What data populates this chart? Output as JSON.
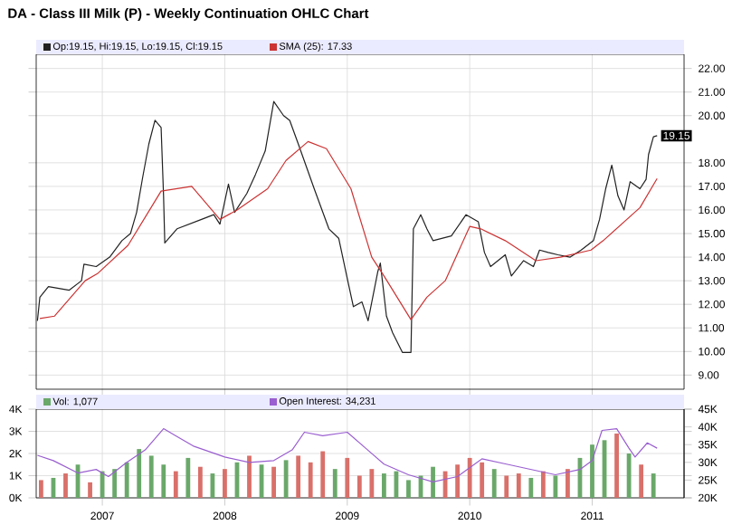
{
  "chart_data": [
    {
      "type": "line",
      "title": "DA - Class III Milk (P) - Weekly Continuation OHLC Chart",
      "legend": "top left",
      "grid": true,
      "tick_labels": "y",
      "xlim": [
        2006.46,
        2011.75
      ],
      "xticks": [
        2007,
        2008,
        2009,
        2010,
        2011
      ],
      "ylim": [
        8.4,
        22.6
      ],
      "yticks": [
        {
          "value": 9,
          "label": "9.00"
        },
        {
          "value": 10,
          "label": "10.00"
        },
        {
          "value": 11,
          "label": "11.00"
        },
        {
          "value": 12,
          "label": "12.00"
        },
        {
          "value": 13,
          "label": "13.00"
        },
        {
          "value": 14,
          "label": "14.00"
        },
        {
          "value": 15,
          "label": "15.00"
        },
        {
          "value": 16,
          "label": "16.00"
        },
        {
          "value": 17,
          "label": "17.00"
        },
        {
          "value": 18,
          "label": "18.00"
        },
        {
          "value": 20,
          "label": "20.00"
        },
        {
          "value": 21,
          "label": "21.00"
        },
        {
          "value": 22,
          "label": "22.00"
        }
      ],
      "annotations": [
        {
          "text": "19.15",
          "x": 2011.53,
          "y": 19.15
        }
      ],
      "series": [
        {
          "name": "Op:19.15, Hi:19.15, Lo:19.15, Cl:19.15",
          "color": "#222222",
          "x": [
            2006.47,
            2006.49,
            2006.56,
            2006.73,
            2006.83,
            2006.85,
            2006.95,
            2007.06,
            2007.16,
            2007.23,
            2007.28,
            2007.33,
            2007.38,
            2007.43,
            2007.48,
            2007.5,
            2007.51,
            2007.61,
            2007.81,
            2007.91,
            2007.96,
            2008.03,
            2008.08,
            2008.18,
            2008.25,
            2008.33,
            2008.4,
            2008.48,
            2008.53,
            2008.6,
            2008.73,
            2008.85,
            2008.93,
            2009.0,
            2009.05,
            2009.12,
            2009.17,
            2009.25,
            2009.27,
            2009.32,
            2009.37,
            2009.45,
            2009.52,
            2009.54,
            2009.6,
            2009.65,
            2009.7,
            2009.85,
            2009.97,
            2010.07,
            2010.12,
            2010.17,
            2010.29,
            2010.34,
            2010.44,
            2010.52,
            2010.57,
            2010.64,
            2010.72,
            2010.82,
            2010.91,
            2011.01,
            2011.06,
            2011.11,
            2011.16,
            2011.21,
            2011.26,
            2011.31,
            2011.39,
            2011.44,
            2011.46,
            2011.5,
            2011.53
          ],
          "values": [
            11.3,
            12.3,
            12.75,
            12.6,
            13.0,
            13.7,
            13.6,
            14.0,
            14.7,
            15.0,
            15.9,
            17.4,
            18.8,
            19.8,
            19.5,
            16.6,
            14.6,
            15.2,
            15.6,
            15.8,
            15.4,
            17.1,
            15.9,
            16.7,
            17.5,
            18.5,
            20.6,
            20.0,
            19.8,
            18.8,
            16.9,
            15.2,
            14.8,
            13.1,
            11.9,
            12.1,
            11.3,
            13.4,
            13.75,
            11.5,
            10.8,
            9.96,
            9.96,
            15.2,
            15.8,
            15.2,
            14.7,
            14.9,
            15.8,
            15.5,
            14.2,
            13.6,
            14.1,
            13.2,
            13.85,
            13.6,
            14.3,
            14.2,
            14.1,
            14.0,
            14.3,
            14.7,
            15.6,
            16.9,
            17.9,
            16.6,
            16.0,
            17.2,
            16.9,
            17.3,
            18.35,
            19.1,
            19.15
          ]
        },
        {
          "name": "SMA (25): 17.33",
          "color": "#cc3333",
          "x": [
            2006.49,
            2006.61,
            2006.86,
            2006.96,
            2007.21,
            2007.48,
            2007.73,
            2007.96,
            2008.1,
            2008.35,
            2008.5,
            2008.68,
            2008.83,
            2009.03,
            2009.2,
            2009.3,
            2009.52,
            2009.65,
            2009.8,
            2010.0,
            2010.09,
            2010.29,
            2010.54,
            2010.74,
            2010.99,
            2011.09,
            2011.24,
            2011.39,
            2011.53
          ],
          "values": [
            11.4,
            11.5,
            13.0,
            13.3,
            14.5,
            16.8,
            17.0,
            15.6,
            16.0,
            16.9,
            18.1,
            18.9,
            18.6,
            16.9,
            14.0,
            13.2,
            11.35,
            12.3,
            13.0,
            15.3,
            15.2,
            14.7,
            13.85,
            14.0,
            14.3,
            14.7,
            15.4,
            16.1,
            17.33
          ]
        }
      ]
    },
    {
      "type": "bar",
      "legend": "top left",
      "grid": true,
      "xlim": [
        2006.46,
        2011.75
      ],
      "xticks": [
        2007,
        2008,
        2009,
        2010,
        2011
      ],
      "ylim": [
        0,
        4000
      ],
      "yticks": [
        {
          "value": 0,
          "label": "0K"
        },
        {
          "value": 1000,
          "label": "1K"
        },
        {
          "value": 2000,
          "label": "2K"
        },
        {
          "value": 3000,
          "label": "3K"
        },
        {
          "value": 4000,
          "label": "4K"
        }
      ],
      "y2lim": [
        20000,
        45000
      ],
      "y2ticks": [
        {
          "value": 20000,
          "label": "20K"
        },
        {
          "value": 25000,
          "label": "25K"
        },
        {
          "value": 30000,
          "label": "30K"
        },
        {
          "value": 35000,
          "label": "35K"
        },
        {
          "value": 40000,
          "label": "40K"
        },
        {
          "value": 45000,
          "label": "45K"
        }
      ],
      "series": [
        {
          "name": "Vol: 1,077",
          "x": [
            2006.5,
            2006.6,
            2006.7,
            2006.8,
            2006.9,
            2007.0,
            2007.1,
            2007.2,
            2007.3,
            2007.4,
            2007.5,
            2007.6,
            2007.7,
            2007.8,
            2007.9,
            2008.0,
            2008.1,
            2008.2,
            2008.3,
            2008.4,
            2008.5,
            2008.6,
            2008.7,
            2008.8,
            2008.9,
            2009.0,
            2009.1,
            2009.2,
            2009.3,
            2009.4,
            2009.5,
            2009.6,
            2009.7,
            2009.8,
            2009.9,
            2010.0,
            2010.1,
            2010.2,
            2010.3,
            2010.4,
            2010.5,
            2010.6,
            2010.7,
            2010.8,
            2010.9,
            2011.0,
            2011.1,
            2011.2,
            2011.3,
            2011.4,
            2011.5
          ],
          "values": [
            800,
            900,
            1100,
            1500,
            700,
            1200,
            1300,
            1600,
            2200,
            1900,
            1500,
            1200,
            1800,
            1400,
            1100,
            1300,
            1600,
            1900,
            1500,
            1400,
            1700,
            1900,
            1600,
            2100,
            1300,
            1800,
            1000,
            1300,
            1100,
            1200,
            800,
            1000,
            1400,
            1200,
            1500,
            1800,
            1600,
            1300,
            1000,
            1100,
            900,
            1200,
            1000,
            1300,
            1800,
            2400,
            2600,
            2900,
            2000,
            1500,
            1100
          ],
          "colors": [
            "#d9706a",
            "#6aa86a",
            "#d9706a",
            "#6aa86a",
            "#d9706a",
            "#6aa86a",
            "#6aa86a",
            "#6aa86a",
            "#6aa86a",
            "#6aa86a",
            "#6aa86a",
            "#d9706a",
            "#6aa86a",
            "#d9706a",
            "#6aa86a",
            "#d9706a",
            "#6aa86a",
            "#d9706a",
            "#6aa86a",
            "#d9706a",
            "#6aa86a",
            "#d9706a",
            "#d9706a",
            "#d9706a",
            "#6aa86a",
            "#d9706a",
            "#d9706a",
            "#d9706a",
            "#6aa86a",
            "#6aa86a",
            "#6aa86a",
            "#6aa86a",
            "#6aa86a",
            "#d9706a",
            "#d9706a",
            "#d9706a",
            "#d9706a",
            "#6aa86a",
            "#d9706a",
            "#d9706a",
            "#6aa86a",
            "#d9706a",
            "#6aa86a",
            "#d9706a",
            "#6aa86a",
            "#6aa86a",
            "#6aa86a",
            "#d9706a",
            "#6aa86a",
            "#d9706a",
            "#6aa86a"
          ]
        },
        {
          "name": "Open Interest: 34,231",
          "type": "line",
          "axis": "y2",
          "color": "#9a5fd0",
          "x": [
            2006.47,
            2006.6,
            2006.8,
            2006.95,
            2007.05,
            2007.2,
            2007.35,
            2007.5,
            2007.6,
            2007.75,
            2008.0,
            2008.2,
            2008.4,
            2008.55,
            2008.65,
            2008.8,
            2009.0,
            2009.15,
            2009.3,
            2009.5,
            2009.7,
            2009.9,
            2010.1,
            2010.3,
            2010.5,
            2010.7,
            2010.9,
            2011.0,
            2011.08,
            2011.2,
            2011.3,
            2011.35,
            2011.45,
            2011.53
          ],
          "values": [
            32000,
            30500,
            27000,
            28000,
            26000,
            30000,
            33500,
            39500,
            37500,
            34500,
            31500,
            30000,
            30500,
            33500,
            38500,
            37500,
            38500,
            34000,
            29500,
            26500,
            24500,
            26000,
            31000,
            29500,
            28000,
            26500,
            28000,
            30500,
            39000,
            39500,
            34000,
            31500,
            35500,
            34000
          ]
        }
      ]
    }
  ]
}
